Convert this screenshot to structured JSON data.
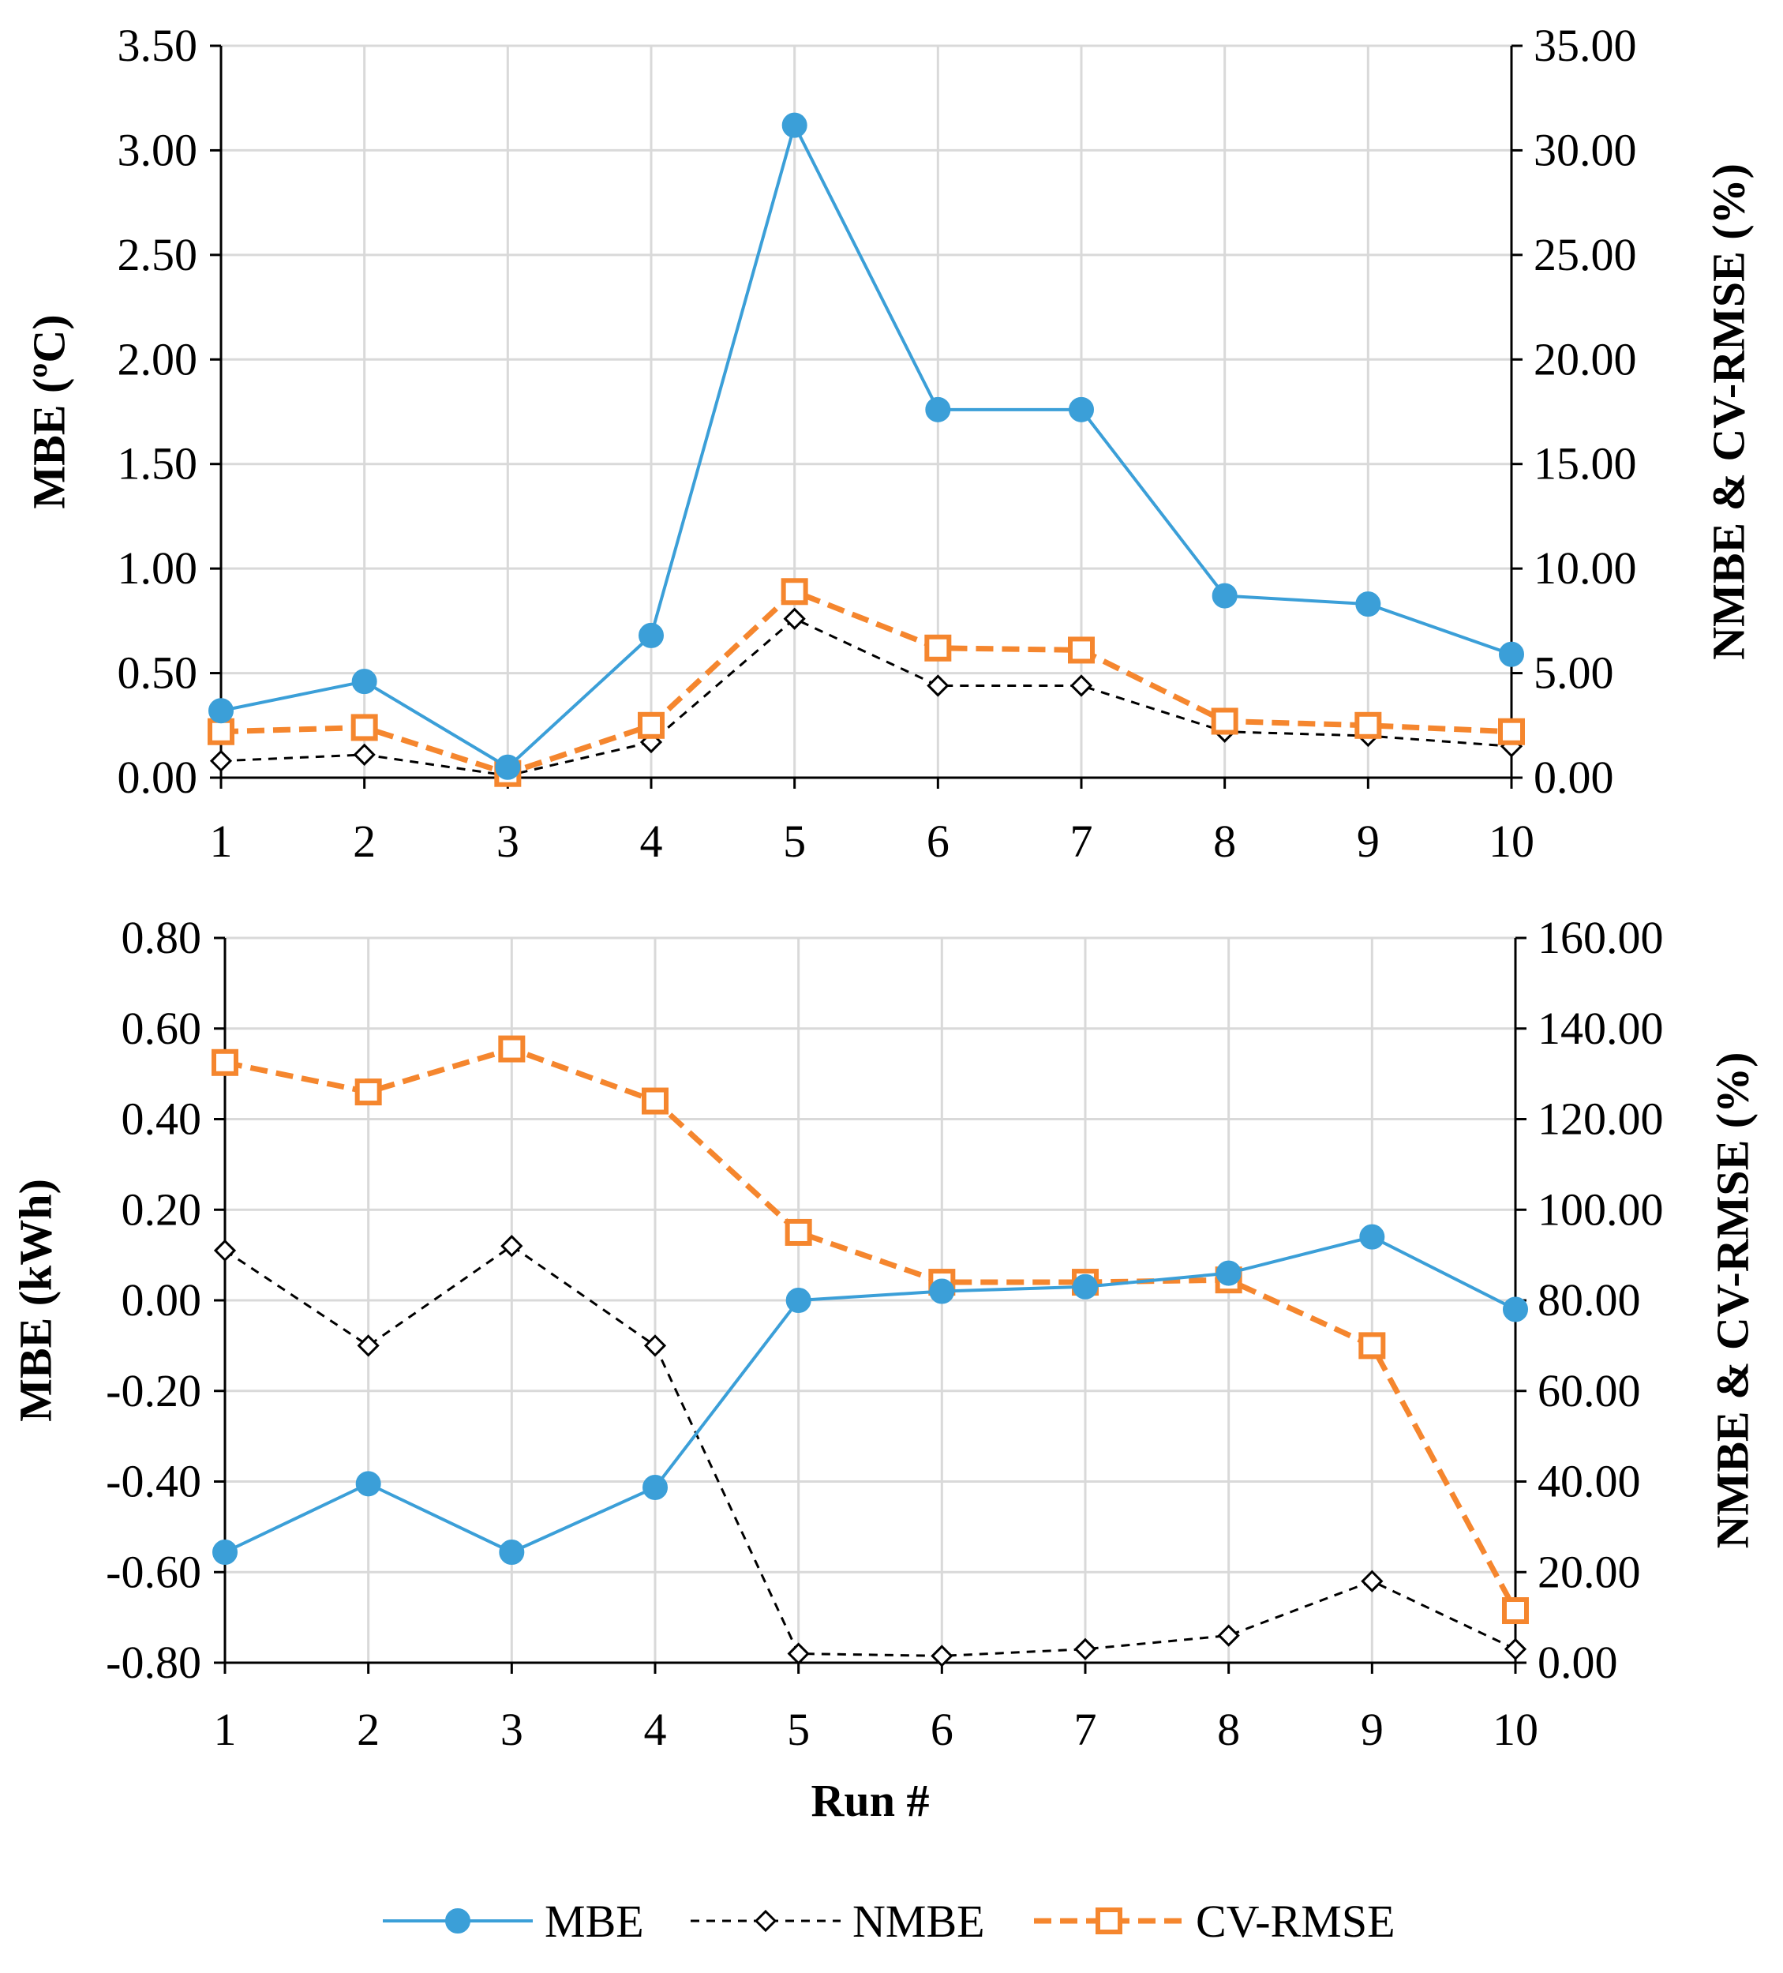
{
  "chart_data": [
    {
      "type": "line",
      "panel": "top",
      "categories": [
        "1",
        "2",
        "3",
        "4",
        "5",
        "6",
        "7",
        "8",
        "9",
        "10"
      ],
      "ylabel": "MBE (ºC)",
      "y2label": "NMBE & CV-RMSE (%)",
      "xlabel": "",
      "ylim": [
        0,
        3.5
      ],
      "y2lim": [
        0,
        35
      ],
      "yticks": [
        "0.00",
        "0.50",
        "1.00",
        "1.50",
        "2.00",
        "2.50",
        "3.00",
        "3.50"
      ],
      "y2ticks": [
        "0.00",
        "5.00",
        "10.00",
        "15.00",
        "20.00",
        "25.00",
        "30.00",
        "35.00"
      ],
      "grid": true,
      "series": [
        {
          "name": "MBE",
          "axis": "left",
          "values": [
            0.32,
            0.46,
            0.05,
            0.68,
            3.12,
            1.76,
            1.76,
            0.87,
            0.83,
            0.59
          ]
        },
        {
          "name": "NMBE",
          "axis": "right",
          "values": [
            0.8,
            1.1,
            0.1,
            1.7,
            7.6,
            4.4,
            4.4,
            2.2,
            2.0,
            1.5
          ]
        },
        {
          "name": "CV-RMSE",
          "axis": "right",
          "values": [
            2.2,
            2.4,
            0.2,
            2.5,
            8.9,
            6.2,
            6.1,
            2.7,
            2.5,
            2.2
          ]
        }
      ]
    },
    {
      "type": "line",
      "panel": "bottom",
      "categories": [
        "1",
        "2",
        "3",
        "4",
        "5",
        "6",
        "7",
        "8",
        "9",
        "10"
      ],
      "ylabel": "MBE (kWh)",
      "y2label": "NMBE & CV-RMSE (%)",
      "xlabel": "Run #",
      "ylim": [
        -0.8,
        0.8
      ],
      "y2lim": [
        0,
        160
      ],
      "yticks": [
        "-0.80",
        "-0.60",
        "-0.40",
        "-0.20",
        "0.00",
        "0.20",
        "0.40",
        "0.60",
        "0.80"
      ],
      "y2ticks": [
        "0.00",
        "20.00",
        "40.00",
        "60.00",
        "80.00",
        "100.00",
        "120.00",
        "140.00",
        "160.00"
      ],
      "grid": true,
      "series": [
        {
          "name": "MBE",
          "axis": "left",
          "values": [
            -0.556,
            -0.405,
            -0.556,
            -0.413,
            0.0,
            0.02,
            0.03,
            0.06,
            0.14,
            -0.02
          ]
        },
        {
          "name": "NMBE",
          "axis": "right",
          "values": [
            91.0,
            70.0,
            92.0,
            70.0,
            2.0,
            1.5,
            3.0,
            6.0,
            18.0,
            3.0
          ]
        },
        {
          "name": "CV-RMSE",
          "axis": "right",
          "values": [
            132.5,
            126.0,
            135.5,
            124.0,
            95.0,
            84.0,
            84.0,
            84.5,
            70.0,
            11.5
          ]
        }
      ]
    }
  ],
  "legend": {
    "position": "bottom",
    "items": [
      {
        "label": "MBE",
        "color": "#3b9fd8",
        "marker": "circle",
        "dash": "solid"
      },
      {
        "label": "NMBE",
        "color": "#000000",
        "marker": "diamond",
        "dash": "dashed"
      },
      {
        "label": "CV-RMSE",
        "color": "#f5862e",
        "marker": "square",
        "dash": "dashed"
      }
    ]
  },
  "colors": {
    "mbe": "#3b9fd8",
    "nmbe": "#000000",
    "cvrmse": "#f5862e",
    "grid": "#d9d9d9"
  }
}
